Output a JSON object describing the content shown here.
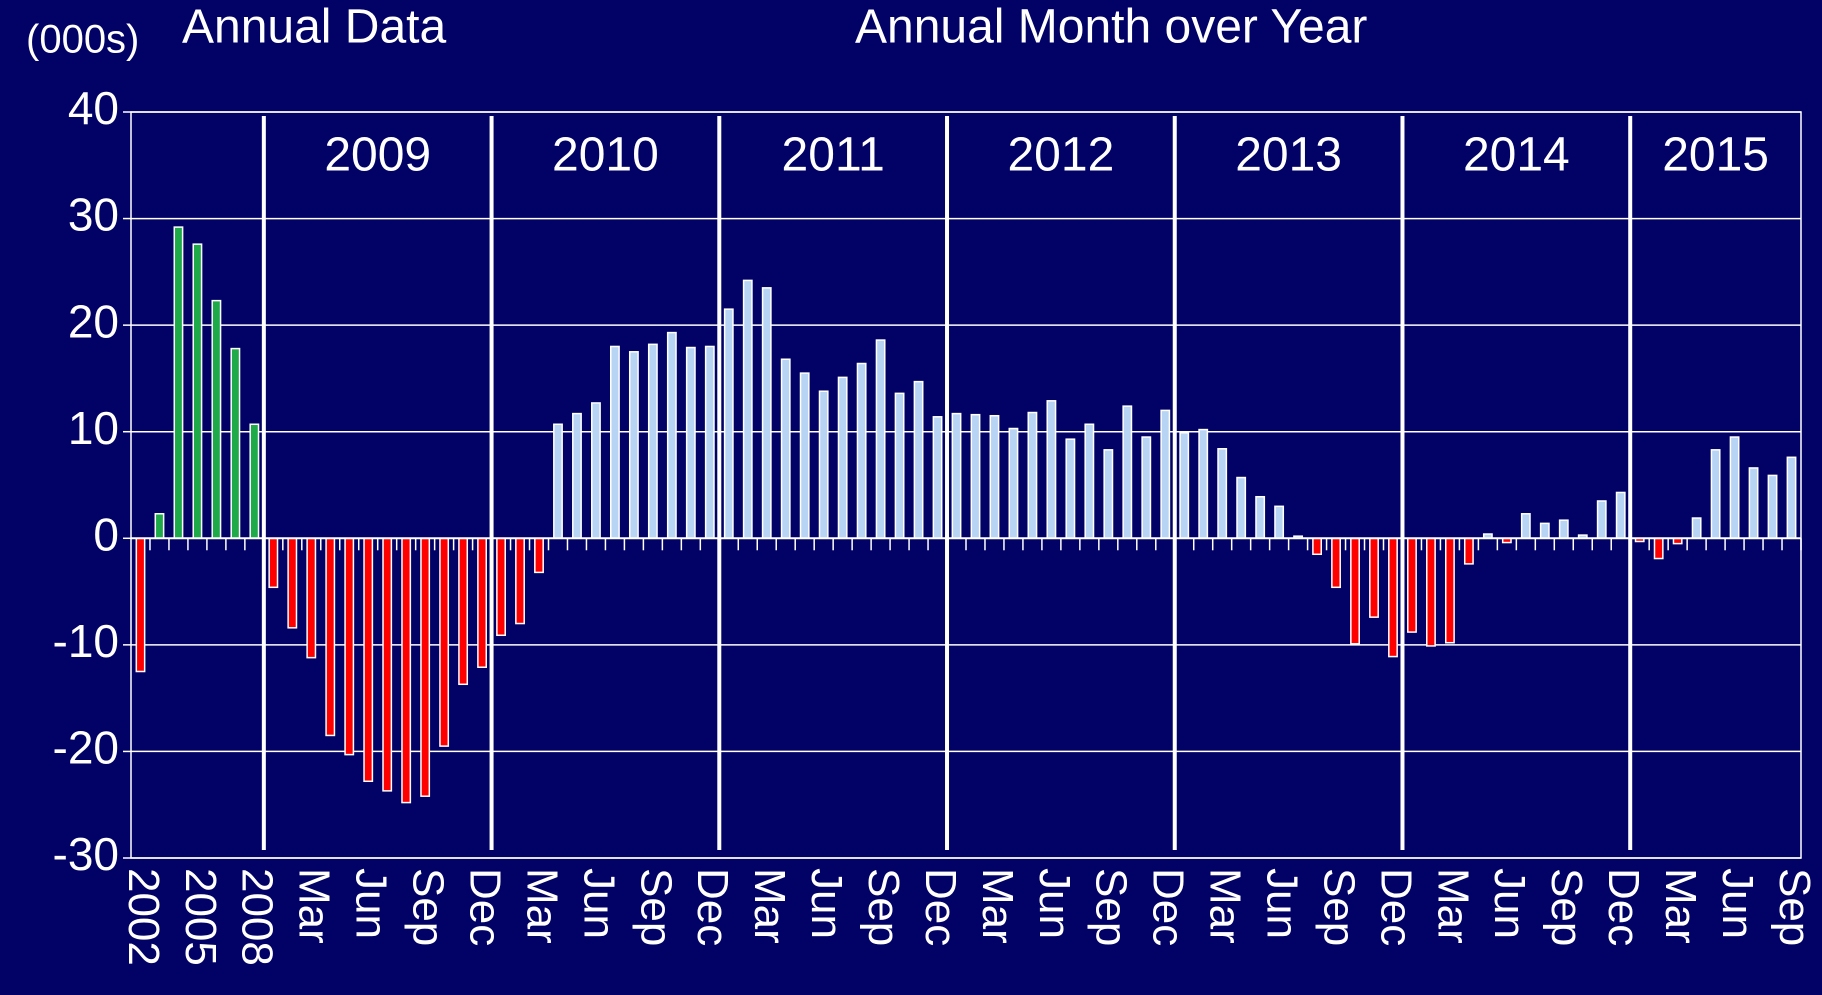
{
  "chart_data": {
    "type": "bar",
    "unit_label": "(000s)",
    "categories": [
      "2002",
      null,
      null,
      "2005",
      null,
      null,
      "2008",
      null,
      null,
      "Mar",
      null,
      null,
      "Jun",
      null,
      null,
      "Sep",
      null,
      null,
      "Dec",
      null,
      null,
      "Mar",
      null,
      null,
      "Jun",
      null,
      null,
      "Sep",
      null,
      null,
      "Dec",
      null,
      null,
      "Mar",
      null,
      null,
      "Jun",
      null,
      null,
      "Sep",
      null,
      null,
      "Dec",
      null,
      null,
      "Mar",
      null,
      null,
      "Jun",
      null,
      null,
      "Sep",
      null,
      null,
      "Dec",
      null,
      null,
      "Mar",
      null,
      null,
      "Jun",
      null,
      null,
      "Sep",
      null,
      null,
      "Dec",
      null,
      null,
      "Mar",
      null,
      null,
      "Jun",
      null,
      null,
      "Sep",
      null,
      null,
      "Dec",
      null,
      null,
      "Mar",
      null,
      null,
      "Jun",
      null,
      null,
      "Sep"
    ],
    "year_labels": [
      "2009",
      "2010",
      "2011",
      "2012",
      "2013",
      "2014",
      "2015"
    ],
    "series": [
      {
        "name": "Annual Data",
        "color": "#1faa4a",
        "title_color": "#33ee33",
        "values": [
          -12.5,
          2.3,
          29.2,
          27.6,
          22.3,
          17.8,
          10.7,
          null,
          null,
          null,
          null,
          null,
          null,
          null,
          null,
          null,
          null,
          null,
          null,
          null,
          null,
          null,
          null,
          null,
          null,
          null,
          null,
          null,
          null,
          null,
          null,
          null,
          null,
          null,
          null,
          null,
          null,
          null,
          null,
          null,
          null,
          null,
          null,
          null,
          null,
          null,
          null,
          null,
          null,
          null,
          null,
          null,
          null,
          null,
          null,
          null,
          null,
          null,
          null,
          null,
          null,
          null,
          null,
          null,
          null,
          null,
          null,
          null,
          null,
          null,
          null,
          null,
          null,
          null,
          null,
          null,
          null,
          null,
          null,
          null,
          null,
          null,
          null,
          null,
          null,
          null,
          null,
          null
        ]
      },
      {
        "name": "Annual Month over Year",
        "color": "#b8d4f4",
        "title_color": "#a8c8f8",
        "values": [
          null,
          null,
          null,
          null,
          null,
          null,
          null,
          -4.6,
          -8.4,
          -11.2,
          -18.5,
          -20.3,
          -22.8,
          -23.7,
          -24.8,
          -24.2,
          -19.5,
          -13.7,
          -12.1,
          -9.1,
          -8.0,
          -3.2,
          10.7,
          11.7,
          12.7,
          18.0,
          17.5,
          18.2,
          19.3,
          17.9,
          18.0,
          21.5,
          24.2,
          23.5,
          16.8,
          15.5,
          13.8,
          15.1,
          16.4,
          18.6,
          13.6,
          14.7,
          11.4,
          11.7,
          11.6,
          11.5,
          10.3,
          11.8,
          12.9,
          9.3,
          10.7,
          8.3,
          12.4,
          9.5,
          12.0,
          9.9,
          10.2,
          8.4,
          5.7,
          3.9,
          3.0,
          0.2,
          -1.5,
          -4.6,
          -9.9,
          -7.4,
          -11.1,
          -8.8,
          -10.1,
          -9.8,
          -2.4,
          0.4,
          -0.4,
          2.3,
          1.4,
          1.7,
          0.3,
          3.5,
          4.3,
          -0.3,
          -1.9,
          -0.5,
          1.9,
          8.3,
          9.5,
          6.6,
          5.9,
          7.6
        ]
      }
    ],
    "negative_color": "#ff0000",
    "ylim": [
      -30,
      40
    ],
    "yticks": [
      -30,
      -20,
      -10,
      0,
      10,
      20,
      30,
      40
    ],
    "grid": true
  }
}
